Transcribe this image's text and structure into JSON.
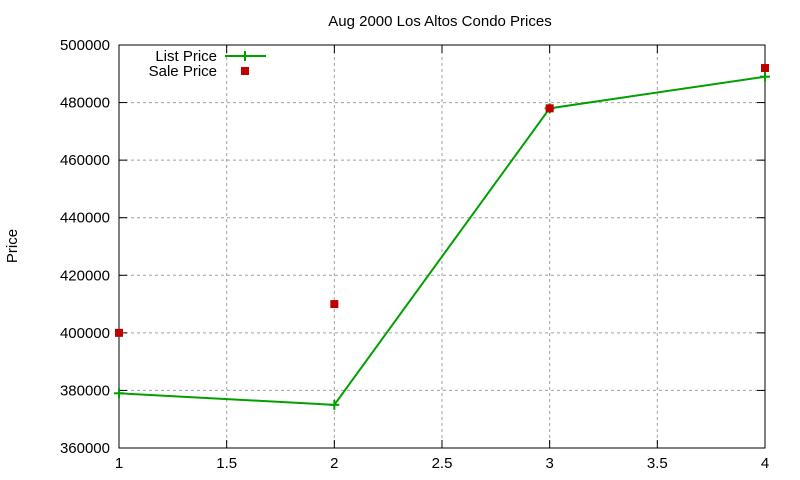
{
  "chart_data": {
    "type": "line",
    "title": "Aug 2000 Los Altos Condo Prices",
    "xlabel": "",
    "ylabel": "Price",
    "xlim": [
      1,
      4
    ],
    "ylim": [
      360000,
      500000
    ],
    "x_ticks": [
      "1",
      "1.5",
      "2",
      "2.5",
      "3",
      "3.5",
      "4"
    ],
    "y_ticks": [
      "360000",
      "380000",
      "400000",
      "420000",
      "440000",
      "460000",
      "480000",
      "500000"
    ],
    "grid": true,
    "legend_position": "top-left",
    "series": [
      {
        "name": "List Price",
        "style": "linespoints",
        "marker": "plus",
        "color": "#00a000",
        "x": [
          1,
          2,
          3,
          4
        ],
        "values": [
          379000,
          375000,
          478000,
          489000
        ]
      },
      {
        "name": "Sale Price",
        "style": "points",
        "marker": "square",
        "color": "#c00000",
        "x": [
          1,
          2,
          3,
          4
        ],
        "values": [
          400000,
          410000,
          478000,
          492000
        ]
      }
    ]
  }
}
